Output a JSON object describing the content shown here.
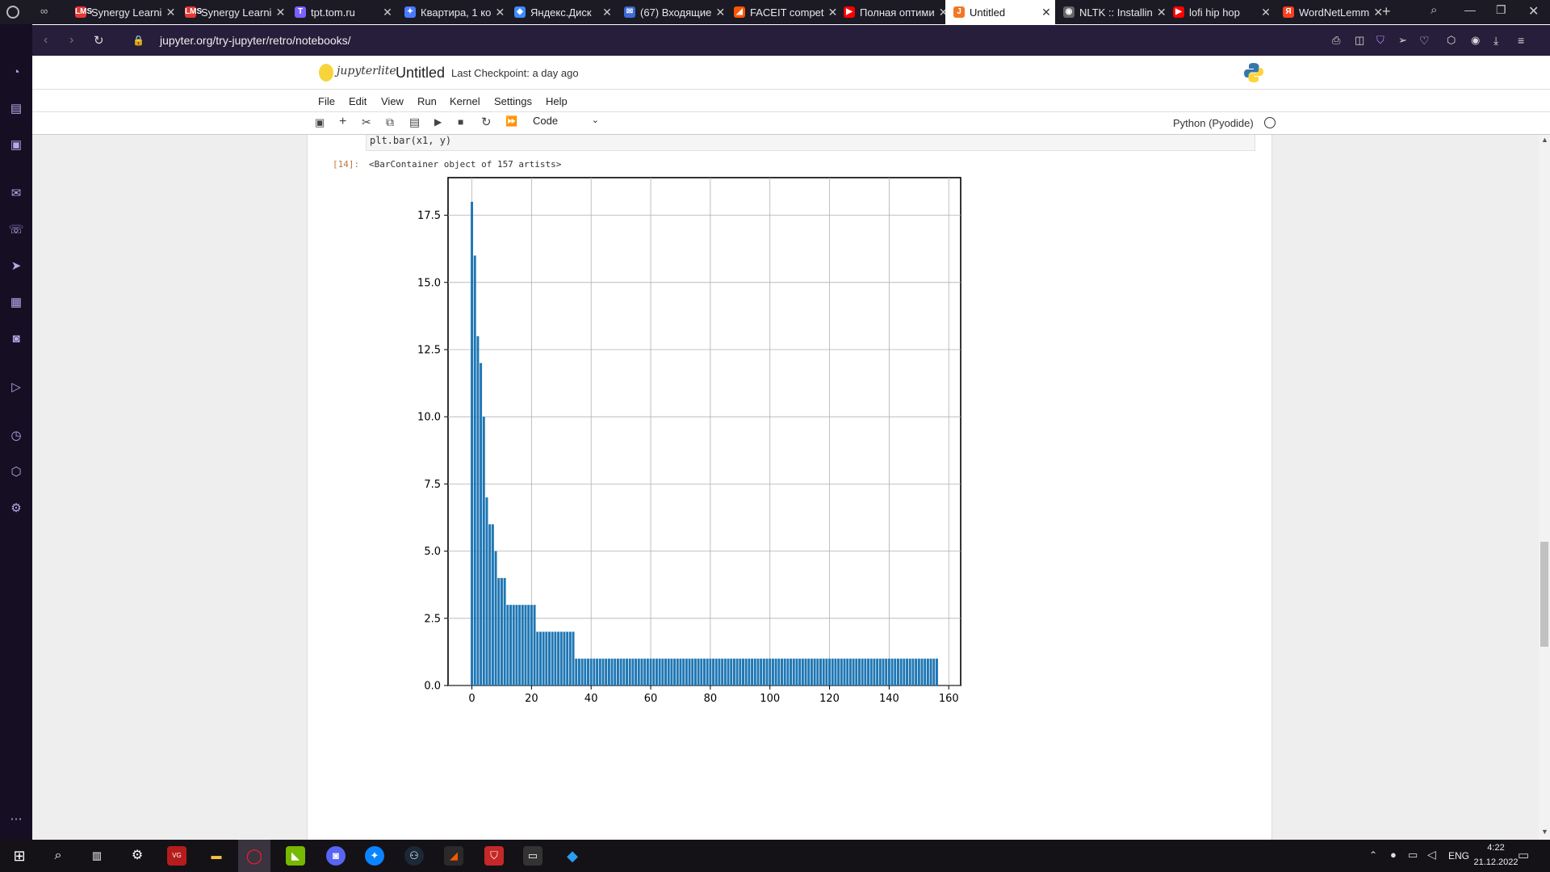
{
  "browser": {
    "tabs": [
      {
        "title": "Synergy Learni",
        "favicon": "LMS",
        "color": "#e53935"
      },
      {
        "title": "Synergy Learni",
        "favicon": "LMS",
        "color": "#e53935"
      },
      {
        "title": "tpt.tom.ru",
        "favicon": "T",
        "color": "#7b61ff"
      },
      {
        "title": "Квартира, 1 ко",
        "favicon": "✦",
        "color": "#4a7bff"
      },
      {
        "title": "Яндекс.Диск",
        "favicon": "◆",
        "color": "#3d8bff"
      },
      {
        "title": "(67) Входящие",
        "favicon": "✉",
        "color": "#3a6bd6"
      },
      {
        "title": "FACEIT compet",
        "favicon": "◢",
        "color": "#ff5500"
      },
      {
        "title": "Полная оптими",
        "favicon": "▶",
        "color": "#ff0000"
      },
      {
        "title": "Untitled",
        "favicon": "J",
        "color": "#f37626"
      },
      {
        "title": "NLTK :: Installin",
        "favicon": "◉",
        "color": "#666666"
      },
      {
        "title": "lofi hip hop",
        "favicon": "▶",
        "color": "#ff0000"
      },
      {
        "title": "WordNetLemm",
        "favicon": "Я",
        "color": "#fc3f1d"
      }
    ],
    "url": "jupyter.org/try-jupyter/retro/notebooks/"
  },
  "notebook": {
    "logo_text": "jupyterlite",
    "title": "Untitled",
    "checkpoint": "Last Checkpoint: a day ago",
    "menu": [
      "File",
      "Edit",
      "View",
      "Run",
      "Kernel",
      "Settings",
      "Help"
    ],
    "cell_type": "Code",
    "kernel": "Python (Pyodide)",
    "code_line": "plt.bar(x1, y)",
    "out_prompt": "[14]:",
    "output_text": "<BarContainer object of 157 artists>"
  },
  "chart_data": {
    "type": "bar",
    "title": "",
    "xlabel": "",
    "ylabel": "",
    "xlim": [
      -8,
      164
    ],
    "ylim": [
      0,
      18.9
    ],
    "xticks": [
      0,
      20,
      40,
      60,
      80,
      100,
      120,
      140,
      160
    ],
    "yticks": [
      0.0,
      2.5,
      5.0,
      7.5,
      10.0,
      12.5,
      15.0,
      17.5
    ],
    "grid": true,
    "bar_color": "#1f77b4",
    "x": "0..156 (157 bars)",
    "values": [
      18,
      16,
      13,
      12,
      10,
      7,
      6,
      6,
      5,
      4,
      4,
      4,
      3,
      3,
      3,
      3,
      3,
      3,
      3,
      3,
      3,
      3,
      2,
      2,
      2,
      2,
      2,
      2,
      2,
      2,
      2,
      2,
      2,
      2,
      2,
      1,
      1,
      1,
      1,
      1,
      1,
      1,
      1,
      1,
      1,
      1,
      1,
      1,
      1,
      1,
      1,
      1,
      1,
      1,
      1,
      1,
      1,
      1,
      1,
      1,
      1,
      1,
      1,
      1,
      1,
      1,
      1,
      1,
      1,
      1,
      1,
      1,
      1,
      1,
      1,
      1,
      1,
      1,
      1,
      1,
      1,
      1,
      1,
      1,
      1,
      1,
      1,
      1,
      1,
      1,
      1,
      1,
      1,
      1,
      1,
      1,
      1,
      1,
      1,
      1,
      1,
      1,
      1,
      1,
      1,
      1,
      1,
      1,
      1,
      1,
      1,
      1,
      1,
      1,
      1,
      1,
      1,
      1,
      1,
      1,
      1,
      1,
      1,
      1,
      1,
      1,
      1,
      1,
      1,
      1,
      1,
      1,
      1,
      1,
      1,
      1,
      1,
      1,
      1,
      1,
      1,
      1,
      1,
      1,
      1,
      1,
      1,
      1,
      1,
      1,
      1,
      1,
      1,
      1,
      1,
      1,
      1
    ]
  },
  "taskbar": {
    "lang": "ENG",
    "time": "4:22",
    "date": "21.12.2022"
  }
}
